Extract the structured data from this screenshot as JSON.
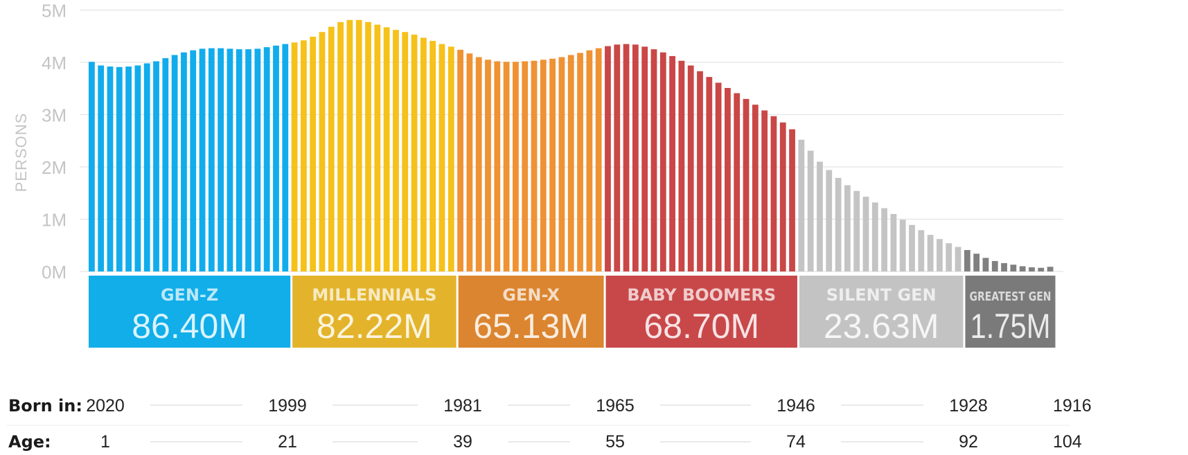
{
  "chart_data": {
    "type": "bar",
    "ylabel": "PERSONS",
    "ylim": [
      0,
      5
    ],
    "y_ticks": [
      "5M",
      "4M",
      "3M",
      "2M",
      "1M",
      "0M"
    ],
    "grid": true,
    "x_order": "age 0 to 100+, left to right",
    "values_millions": [
      4.01,
      3.94,
      3.92,
      3.91,
      3.92,
      3.94,
      3.98,
      4.02,
      4.08,
      4.14,
      4.19,
      4.23,
      4.26,
      4.27,
      4.27,
      4.26,
      4.25,
      4.25,
      4.26,
      4.29,
      4.32,
      4.35,
      4.38,
      4.42,
      4.49,
      4.58,
      4.68,
      4.77,
      4.81,
      4.81,
      4.77,
      4.72,
      4.67,
      4.62,
      4.58,
      4.53,
      4.47,
      4.41,
      4.35,
      4.3,
      4.24,
      4.17,
      4.1,
      4.05,
      4.02,
      4.01,
      4.01,
      4.02,
      4.03,
      4.05,
      4.07,
      4.1,
      4.14,
      4.18,
      4.23,
      4.27,
      4.31,
      4.34,
      4.35,
      4.34,
      4.3,
      4.25,
      4.19,
      4.12,
      4.03,
      3.94,
      3.83,
      3.72,
      3.61,
      3.51,
      3.41,
      3.3,
      3.19,
      3.08,
      2.97,
      2.85,
      2.72,
      2.52,
      2.31,
      2.1,
      1.94,
      1.79,
      1.65,
      1.54,
      1.43,
      1.32,
      1.21,
      1.1,
      0.99,
      0.89,
      0.79,
      0.7,
      0.62,
      0.54,
      0.47,
      0.41,
      0.34,
      0.26,
      0.2,
      0.16,
      0.13,
      0.1,
      0.08,
      0.07,
      0.09
    ],
    "generations": [
      {
        "name": "GEN-Z",
        "total": "86.40M",
        "color": "#11acec",
        "count": 22
      },
      {
        "name": "MILLENNIALS",
        "total": "82.22M",
        "color": "#f5c11a",
        "count": 18
      },
      {
        "name": "GEN-X",
        "total": "65.13M",
        "color": "#ef9233",
        "count": 16
      },
      {
        "name": "BABY BOOMERS",
        "total": "68.70M",
        "color": "#c94746",
        "count": 21
      },
      {
        "name": "SILENT GEN",
        "total": "23.63M",
        "color": "#c4c4c4",
        "count": 18
      },
      {
        "name": "GREATEST GEN",
        "total": "1.75M",
        "color": "#808080",
        "count": 10
      }
    ],
    "box_colors": [
      "#11aee9",
      "#e3b42b",
      "#db8530",
      "#c8484a",
      "#c3c3c3",
      "#7a7a7a"
    ],
    "born_in": {
      "label": "Born in:",
      "values": [
        "2020",
        "1999",
        "1981",
        "1965",
        "1946",
        "1928",
        "1916"
      ]
    },
    "age": {
      "label": "Age:",
      "values": [
        "1",
        "21",
        "39",
        "55",
        "74",
        "92",
        "104"
      ]
    }
  }
}
